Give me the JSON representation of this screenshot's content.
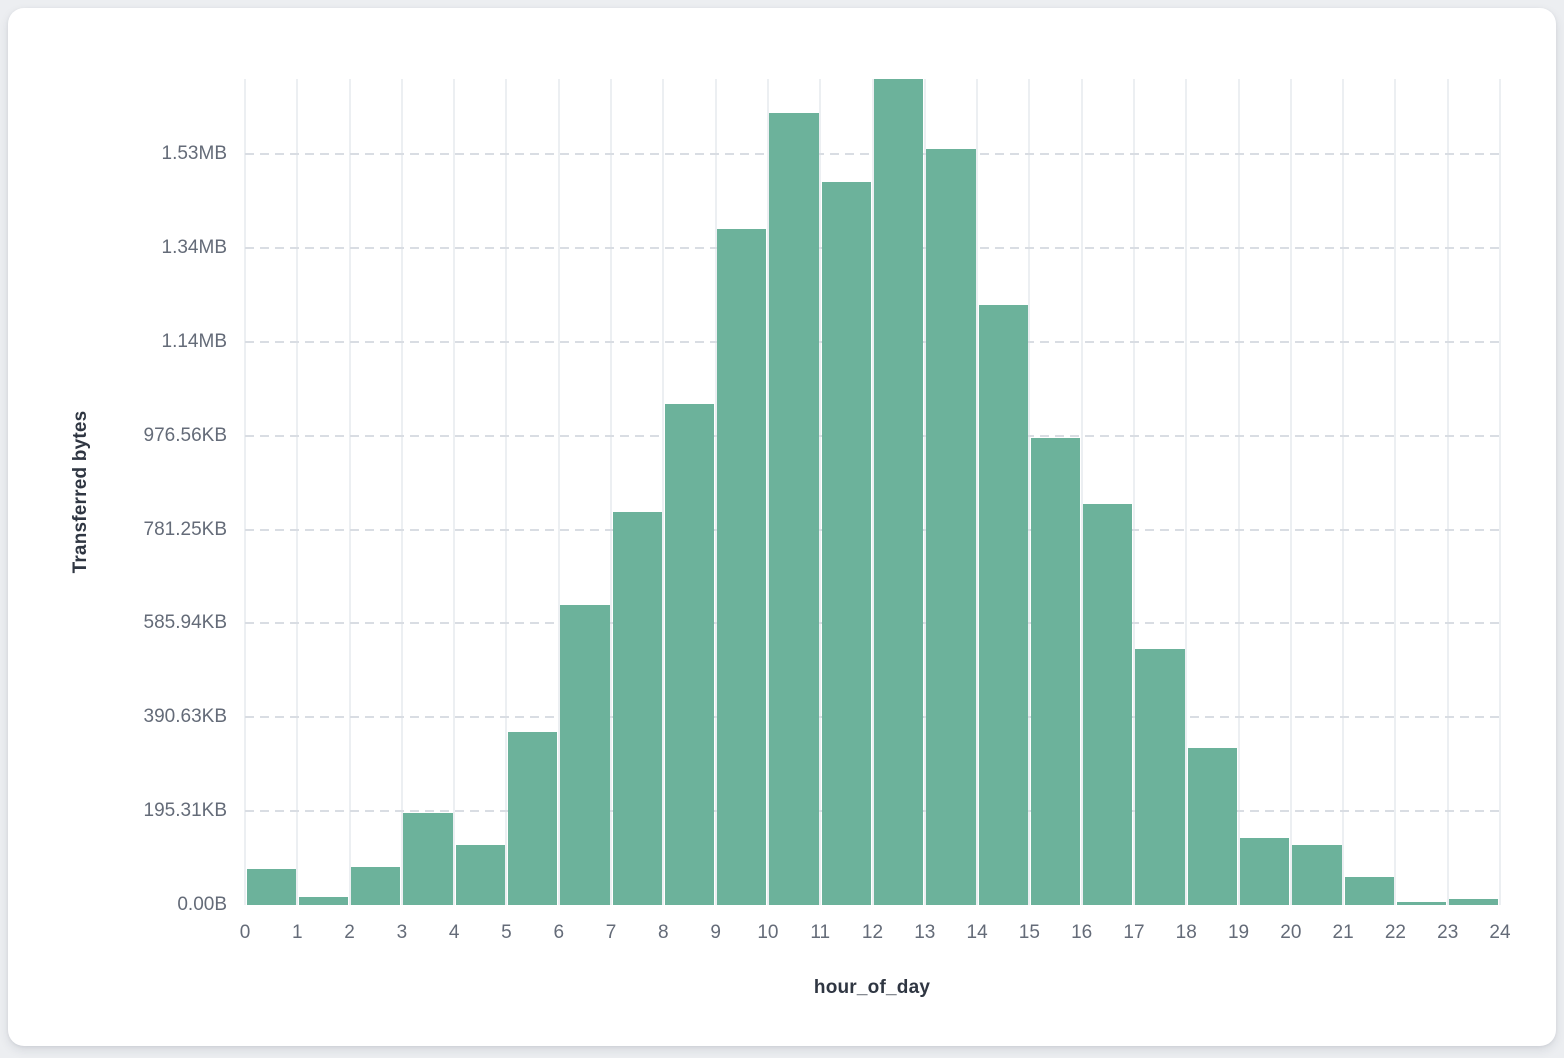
{
  "chart_data": {
    "type": "bar",
    "title": "",
    "xlabel": "hour_of_day",
    "ylabel": "Transferred bytes",
    "categories": [
      0,
      1,
      2,
      3,
      4,
      5,
      6,
      7,
      8,
      9,
      10,
      11,
      12,
      13,
      14,
      15,
      16,
      17,
      18,
      19,
      20,
      21,
      22,
      23
    ],
    "values": [
      77000,
      17000,
      81000,
      196000,
      128000,
      369000,
      640000,
      838000,
      1067000,
      1440000,
      1688000,
      1540000,
      1760000,
      1611000,
      1278000,
      996000,
      855000,
      546000,
      335000,
      143000,
      128000,
      60000,
      6000,
      13000
    ],
    "values_unit": "bytes",
    "bin_width": 1,
    "xlim": [
      0,
      24
    ],
    "ylim": [
      0,
      1760000
    ],
    "x_ticks": [
      "0",
      "1",
      "2",
      "3",
      "4",
      "5",
      "6",
      "7",
      "8",
      "9",
      "10",
      "11",
      "12",
      "13",
      "14",
      "15",
      "16",
      "17",
      "18",
      "19",
      "20",
      "21",
      "22",
      "23",
      "24"
    ],
    "y_ticks": [
      {
        "value": 0,
        "label": "0.00B"
      },
      {
        "value": 200000,
        "label": "195.31KB"
      },
      {
        "value": 400000,
        "label": "390.63KB"
      },
      {
        "value": 600000,
        "label": "585.94KB"
      },
      {
        "value": 800000,
        "label": "781.25KB"
      },
      {
        "value": 1000000,
        "label": "976.56KB"
      },
      {
        "value": 1200000,
        "label": "1.14MB"
      },
      {
        "value": 1400000,
        "label": "1.34MB"
      },
      {
        "value": 1600000,
        "label": "1.53MB"
      }
    ],
    "grid": {
      "vertical": "solid",
      "horizontal": "dashed"
    },
    "legend": "none"
  },
  "colors": {
    "bar": "#6cb29b",
    "vertical_gridline": "#eceff2",
    "horizontal_gridline": "#d9dde3",
    "tick_label": "#646b78",
    "axis_title": "#2f3642",
    "card_background": "#ffffff",
    "page_background": "#eceef1"
  }
}
